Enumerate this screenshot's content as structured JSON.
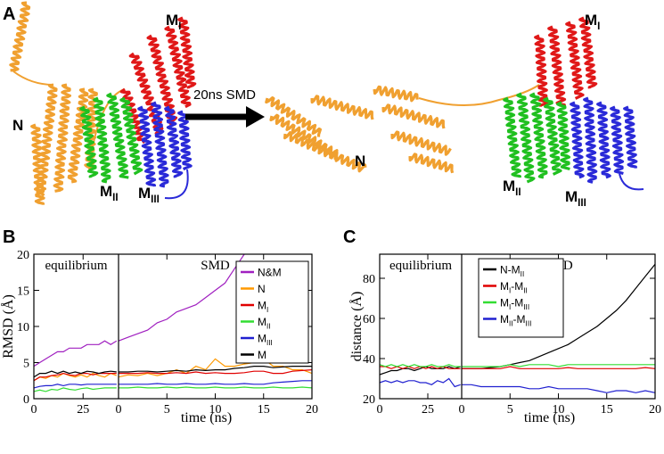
{
  "panel_a": {
    "label": "A",
    "arrow_label": "20ns SMD",
    "labels": [
      [
        "M",
        "I"
      ],
      [
        "N"
      ],
      [
        "M",
        "II"
      ],
      [
        "M",
        "III"
      ],
      [
        "N"
      ],
      [
        "M",
        "I"
      ],
      [
        "M",
        "II"
      ],
      [
        "M",
        "III"
      ]
    ]
  },
  "chart_data": [
    {
      "type": "line",
      "panel_label": "B",
      "ylabel": "RMSD (Å)",
      "xlabel": "time (ns)",
      "ylim": [
        0,
        20
      ],
      "yticks": [
        0,
        5,
        10,
        15,
        20
      ],
      "series": [
        {
          "name": [
            "N&M"
          ],
          "color": "#a020c0"
        },
        {
          "name": [
            "N"
          ],
          "color": "#ff9900"
        },
        {
          "name": [
            "M",
            "I"
          ],
          "color": "#e00000"
        },
        {
          "name": [
            "M",
            "II"
          ],
          "color": "#33dd33"
        },
        {
          "name": [
            "M",
            "III"
          ],
          "color": "#2020d0"
        },
        {
          "name": [
            "M"
          ],
          "color": "#000000"
        }
      ],
      "segments": [
        {
          "annotation": "equilibrium",
          "xlim": [
            0,
            43
          ],
          "xticks": [
            0,
            25
          ],
          "x": [
            0,
            3,
            6,
            9,
            12,
            15,
            18,
            21,
            24,
            27,
            30,
            33,
            36,
            39,
            42
          ],
          "series": [
            {
              "values": [
                4.5,
                5,
                5.5,
                6,
                6.5,
                6.5,
                7,
                7,
                7,
                7.5,
                7.5,
                7.5,
                8,
                7.5,
                8
              ]
            },
            {
              "values": [
                2.5,
                3,
                2.8,
                3.2,
                3,
                3.5,
                3.2,
                3,
                3.3,
                3,
                3.5,
                3.2,
                3,
                3.5,
                3.2
              ]
            },
            {
              "values": [
                2.5,
                3,
                3,
                3.2,
                3.3,
                3.5,
                3.3,
                3.2,
                3.5,
                3.5,
                3.3,
                3.5,
                3.5,
                3.5,
                3.5
              ]
            },
            {
              "values": [
                1,
                1.2,
                1,
                1.3,
                1.2,
                1.5,
                1.3,
                1.2,
                1.4,
                1.5,
                1.3,
                1.4,
                1.5,
                1.5,
                1.5
              ]
            },
            {
              "values": [
                1.5,
                1.7,
                1.8,
                1.8,
                2,
                1.8,
                2,
                2,
                1.9,
                2,
                2,
                2,
                2,
                2,
                2
              ]
            },
            {
              "values": [
                3,
                3.5,
                3.5,
                3.8,
                3.5,
                3.8,
                3.5,
                3.7,
                3.5,
                3.8,
                3.7,
                3.5,
                3.7,
                3.8,
                3.7
              ]
            }
          ]
        },
        {
          "annotation": "SMD",
          "xlim": [
            0,
            20
          ],
          "xticks": [
            0,
            5,
            10,
            15,
            20
          ],
          "x": [
            0,
            1,
            2,
            3,
            4,
            5,
            6,
            7,
            8,
            9,
            10,
            11,
            12,
            13,
            14,
            15,
            16,
            17,
            18,
            19,
            20
          ],
          "series": [
            {
              "values": [
                8,
                8.5,
                9,
                9.5,
                10.5,
                11,
                12,
                12.5,
                13,
                14,
                15,
                16,
                18,
                20,
                null,
                null,
                null,
                null,
                null,
                null,
                null
              ]
            },
            {
              "values": [
                3,
                3.3,
                3.2,
                3.5,
                3.2,
                3.5,
                4,
                3.5,
                4.5,
                4,
                5.5,
                4.5,
                4.5,
                4.8,
                5,
                5.5,
                4.5,
                4.5,
                4,
                4,
                3.5
              ]
            },
            {
              "values": [
                3.5,
                3.5,
                3.5,
                3.6,
                3.5,
                3.5,
                3.6,
                3.5,
                3.7,
                3.5,
                3.6,
                3.5,
                3.5,
                3.6,
                3.8,
                3.8,
                3.5,
                3.5,
                3.8,
                3.9,
                4
              ]
            },
            {
              "values": [
                1.5,
                1.5,
                1.6,
                1.5,
                1.5,
                1.6,
                1.5,
                1.6,
                1.5,
                1.5,
                1.6,
                1.5,
                1.5,
                1.6,
                1.5,
                1.5,
                1.6,
                1.5,
                1.5,
                1.6,
                1.5
              ]
            },
            {
              "values": [
                2,
                2,
                2,
                2,
                2.1,
                2,
                2,
                2.1,
                2,
                2,
                2.1,
                2,
                2,
                2.1,
                2,
                2,
                2.2,
                2.3,
                2.4,
                2.5,
                2.5
              ]
            },
            {
              "values": [
                3.7,
                3.7,
                3.8,
                3.8,
                3.7,
                3.8,
                3.9,
                3.8,
                4,
                3.9,
                4,
                4,
                4.2,
                4.3,
                4.5,
                4.5,
                4.3,
                4.4,
                4.5,
                4.5,
                4.5
              ]
            }
          ]
        }
      ]
    },
    {
      "type": "line",
      "panel_label": "C",
      "ylabel": "distance (Å)",
      "xlabel": "time (ns)",
      "ylim": [
        20,
        92
      ],
      "yticks": [
        20,
        40,
        60,
        80
      ],
      "series": [
        {
          "name": [
            "N-M",
            "II"
          ],
          "color": "#000000"
        },
        {
          "name": [
            "M",
            "I",
            "-M",
            "II"
          ],
          "color": "#e00000"
        },
        {
          "name": [
            "M",
            "I",
            "-M",
            "III"
          ],
          "color": "#33dd33"
        },
        {
          "name": [
            "M",
            "II",
            "-M",
            "III"
          ],
          "color": "#2020d0"
        }
      ],
      "segments": [
        {
          "annotation": "equilibrium",
          "xlim": [
            0,
            42.6
          ],
          "xticks": [
            0,
            25
          ],
          "x": [
            0,
            3,
            6,
            9,
            12,
            15,
            18,
            21,
            24,
            27,
            30,
            33,
            36,
            39,
            42
          ],
          "series": [
            {
              "values": [
                32,
                33,
                34,
                34,
                35,
                35,
                34,
                35,
                36,
                35,
                35,
                35,
                36,
                35,
                36
              ]
            },
            {
              "values": [
                36,
                36,
                35,
                36,
                35,
                36,
                35,
                36,
                35,
                36,
                35,
                36,
                35,
                35,
                35
              ]
            },
            {
              "values": [
                37,
                36,
                37,
                36,
                37,
                36,
                37,
                36,
                36,
                37,
                36,
                36,
                37,
                36,
                36
              ]
            },
            {
              "values": [
                28,
                29,
                28,
                29,
                28,
                29,
                29,
                28,
                28,
                27,
                29,
                28,
                30,
                26,
                27
              ]
            }
          ]
        },
        {
          "annotation": "SMD",
          "xlim": [
            0,
            20
          ],
          "xticks": [
            0,
            5,
            10,
            15,
            20
          ],
          "x": [
            0,
            1,
            2,
            3,
            4,
            5,
            6,
            7,
            8,
            9,
            10,
            11,
            12,
            13,
            14,
            15,
            16,
            17,
            18,
            19,
            20
          ],
          "series": [
            {
              "values": [
                35,
                35,
                35,
                35.5,
                36,
                37,
                38,
                39,
                41,
                43,
                45,
                47,
                50,
                53,
                56,
                60,
                64,
                69,
                75,
                81,
                87
              ]
            },
            {
              "values": [
                35,
                35,
                35,
                35,
                35,
                36,
                35,
                35,
                35,
                35,
                35,
                35.5,
                35,
                35,
                35,
                35,
                35,
                35,
                35,
                35.5,
                35
              ]
            },
            {
              "values": [
                36,
                36,
                36,
                36,
                36,
                37,
                36,
                37,
                37,
                37,
                36,
                37,
                37,
                37,
                37,
                37,
                37,
                37,
                37,
                37,
                37
              ]
            },
            {
              "values": [
                27,
                27,
                26,
                26,
                26,
                26,
                26,
                25,
                25,
                26,
                25,
                25,
                25,
                25,
                24,
                23,
                24,
                24,
                23,
                24,
                23
              ]
            }
          ]
        }
      ]
    }
  ]
}
